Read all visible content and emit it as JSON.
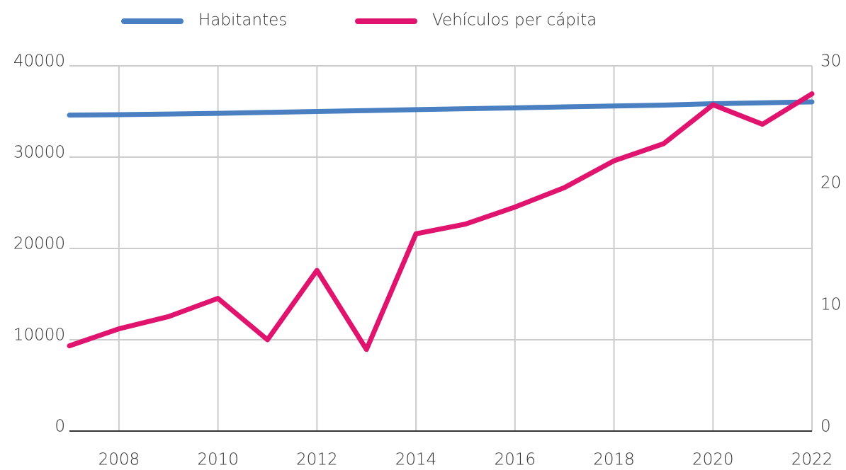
{
  "chart_data": {
    "type": "line",
    "x": [
      2007,
      2008,
      2009,
      2010,
      2011,
      2012,
      2013,
      2014,
      2015,
      2016,
      2017,
      2018,
      2019,
      2020,
      2021,
      2022
    ],
    "xlim": [
      2007,
      2022
    ],
    "xticks": [
      2008,
      2010,
      2012,
      2014,
      2016,
      2018,
      2020,
      2022
    ],
    "ylim": [
      0,
      40000
    ],
    "yticks": [
      0,
      10000,
      20000,
      30000,
      40000
    ],
    "y2lim": [
      0,
      30
    ],
    "y2ticks": [
      0,
      10,
      20,
      30
    ],
    "grid": true,
    "legend": "top",
    "series": [
      {
        "name": "Habitantes",
        "color": "#4a7fc1",
        "values": [
          34600,
          34650,
          34720,
          34800,
          34900,
          35000,
          35100,
          35200,
          35300,
          35400,
          35500,
          35600,
          35700,
          35850,
          35950,
          36050
        ]
      },
      {
        "name": "Vehículos per cápita",
        "color": "#e0146e",
        "axis": "y2",
        "values": [
          7.0,
          8.4,
          9.4,
          10.9,
          7.5,
          13.2,
          6.7,
          16.2,
          17.0,
          18.4,
          20.0,
          22.2,
          23.6,
          26.8,
          25.2,
          27.7
        ]
      }
    ]
  }
}
